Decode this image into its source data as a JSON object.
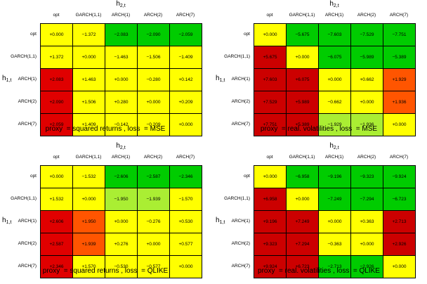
{
  "chart_data": [
    {
      "type": "heatmap",
      "caption": "proxy  = squared returns , loss  = MSE",
      "col_axis_label": {
        "base": "h",
        "sub": "2,t"
      },
      "row_axis_label": {
        "base": "h",
        "sub": "1,t"
      },
      "columns": [
        "opt",
        "GARCH(1,1)",
        "ARCH(1)",
        "ARCH(2)",
        "ARCH(7)"
      ],
      "rows": [
        "opt",
        "GARCH(1,1)",
        "ARCH(1)",
        "ARCH(2)",
        "ARCH(7)"
      ],
      "values": [
        [
          "+0.000",
          "−1.372",
          "−2.083",
          "−2.090",
          "−2.059"
        ],
        [
          "+1.372",
          "+0.000",
          "−1.463",
          "−1.506",
          "−1.409"
        ],
        [
          "+2.083",
          "+1.463",
          "+0.000",
          "−0.280",
          "+0.142"
        ],
        [
          "+2.090",
          "+1.506",
          "+0.280",
          "+0.000",
          "+0.209"
        ],
        [
          "+2.059",
          "+1.409",
          "−0.142",
          "−0.209",
          "+0.000"
        ]
      ],
      "colors": [
        [
          "#ffff00",
          "#ffff00",
          "#00cc00",
          "#00cc00",
          "#00cc00"
        ],
        [
          "#ffff00",
          "#ffff00",
          "#ffff00",
          "#ffff00",
          "#ffff00"
        ],
        [
          "#e00000",
          "#ffff00",
          "#ffff00",
          "#ffff00",
          "#ffff00"
        ],
        [
          "#e00000",
          "#ffff00",
          "#ffff00",
          "#ffff00",
          "#ffff00"
        ],
        [
          "#e00000",
          "#ffff00",
          "#ffff00",
          "#ffff00",
          "#ffff00"
        ]
      ]
    },
    {
      "type": "heatmap",
      "caption": "proxy  = real. volatilities , loss  = MSE",
      "col_axis_label": {
        "base": "h",
        "sub": "2,t"
      },
      "row_axis_label": {
        "base": "h",
        "sub": "1,t"
      },
      "columns": [
        "opt",
        "GARCH(1,1)",
        "ARCH(1)",
        "ARCH(2)",
        "ARCH(7)"
      ],
      "rows": [
        "opt",
        "GARCH(1,1)",
        "ARCH(1)",
        "ARCH(2)",
        "ARCH(7)"
      ],
      "values": [
        [
          "+0.000",
          "−5.675",
          "−7.603",
          "−7.529",
          "−7.751"
        ],
        [
          "+5.675",
          "+0.000",
          "−6.075",
          "−5.989",
          "−5.389"
        ],
        [
          "+7.603",
          "+6.075",
          "+0.000",
          "+0.662",
          "+1.929"
        ],
        [
          "+7.529",
          "+5.989",
          "−0.662",
          "+0.000",
          "+1.936"
        ],
        [
          "+7.751",
          "+5.389",
          "−1.929",
          "−1.936",
          "+0.000"
        ]
      ],
      "colors": [
        [
          "#ffff00",
          "#00cc00",
          "#00cc00",
          "#00cc00",
          "#00cc00"
        ],
        [
          "#cc0000",
          "#ffff00",
          "#00cc00",
          "#00cc00",
          "#00cc00"
        ],
        [
          "#cc0000",
          "#cc0000",
          "#ffff00",
          "#ffff00",
          "#ff5500"
        ],
        [
          "#cc0000",
          "#cc0000",
          "#ffff00",
          "#ffff00",
          "#ff5500"
        ],
        [
          "#cc0000",
          "#cc0000",
          "#aaee33",
          "#aaee33",
          "#ffff00"
        ]
      ]
    },
    {
      "type": "heatmap",
      "caption": "proxy  = squared returns , loss  = QLIKE",
      "col_axis_label": {
        "base": "h",
        "sub": "2,t"
      },
      "row_axis_label": {
        "base": "h",
        "sub": "1,t"
      },
      "columns": [
        "opt",
        "GARCH(1,1)",
        "ARCH(1)",
        "ARCH(2)",
        "ARCH(7)"
      ],
      "rows": [
        "opt",
        "GARCH(1,1)",
        "ARCH(1)",
        "ARCH(2)",
        "ARCH(7)"
      ],
      "values": [
        [
          "+0.000",
          "−1.532",
          "−2.606",
          "−2.587",
          "−2.346"
        ],
        [
          "+1.532",
          "+0.000",
          "−1.950",
          "−1.939",
          "−1.570"
        ],
        [
          "+2.606",
          "+1.950",
          "+0.000",
          "−0.276",
          "+0.530"
        ],
        [
          "+2.587",
          "+1.939",
          "+0.276",
          "+0.000",
          "+0.577"
        ],
        [
          "+2.346",
          "+1.570",
          "−0.530",
          "−0.577",
          "+0.000"
        ]
      ],
      "colors": [
        [
          "#ffff00",
          "#ffff00",
          "#00cc00",
          "#00cc00",
          "#00cc00"
        ],
        [
          "#ffff00",
          "#ffff00",
          "#aaee33",
          "#aaee33",
          "#ffff00"
        ],
        [
          "#e00000",
          "#ff5500",
          "#ffff00",
          "#ffff00",
          "#ffff00"
        ],
        [
          "#e00000",
          "#ff5500",
          "#ffff00",
          "#ffff00",
          "#ffff00"
        ],
        [
          "#e00000",
          "#ffff00",
          "#ffff00",
          "#ffff00",
          "#ffff00"
        ]
      ]
    },
    {
      "type": "heatmap",
      "caption": "proxy  = real. volatilities , loss  = QLIKE",
      "col_axis_label": {
        "base": "h",
        "sub": "2,t"
      },
      "row_axis_label": {
        "base": "h",
        "sub": "1,t"
      },
      "columns": [
        "opt",
        "GARCH(1,1)",
        "ARCH(1)",
        "ARCH(2)",
        "ARCH(7)"
      ],
      "rows": [
        "opt",
        "GARCH(1,1)",
        "ARCH(1)",
        "ARCH(2)",
        "ARCH(7)"
      ],
      "values": [
        [
          "+0.000",
          "−6.958",
          "−9.196",
          "−9.323",
          "−9.924"
        ],
        [
          "+6.958",
          "+0.000",
          "−7.249",
          "−7.294",
          "−6.723"
        ],
        [
          "+9.196",
          "+7.249",
          "+0.000",
          "+0.363",
          "+2.713"
        ],
        [
          "+9.323",
          "+7.294",
          "−0.363",
          "+0.000",
          "+2.926"
        ],
        [
          "+9.924",
          "+6.723",
          "−2.713",
          "−2.926",
          "+0.000"
        ]
      ],
      "colors": [
        [
          "#ffff00",
          "#00cc00",
          "#00cc00",
          "#00cc00",
          "#00cc00"
        ],
        [
          "#cc0000",
          "#ffff00",
          "#00cc00",
          "#00cc00",
          "#00cc00"
        ],
        [
          "#cc0000",
          "#cc0000",
          "#ffff00",
          "#ffff00",
          "#cc0000"
        ],
        [
          "#cc0000",
          "#cc0000",
          "#ffff00",
          "#ffff00",
          "#cc0000"
        ],
        [
          "#cc0000",
          "#cc0000",
          "#00cc00",
          "#00cc00",
          "#ffff00"
        ]
      ]
    }
  ]
}
